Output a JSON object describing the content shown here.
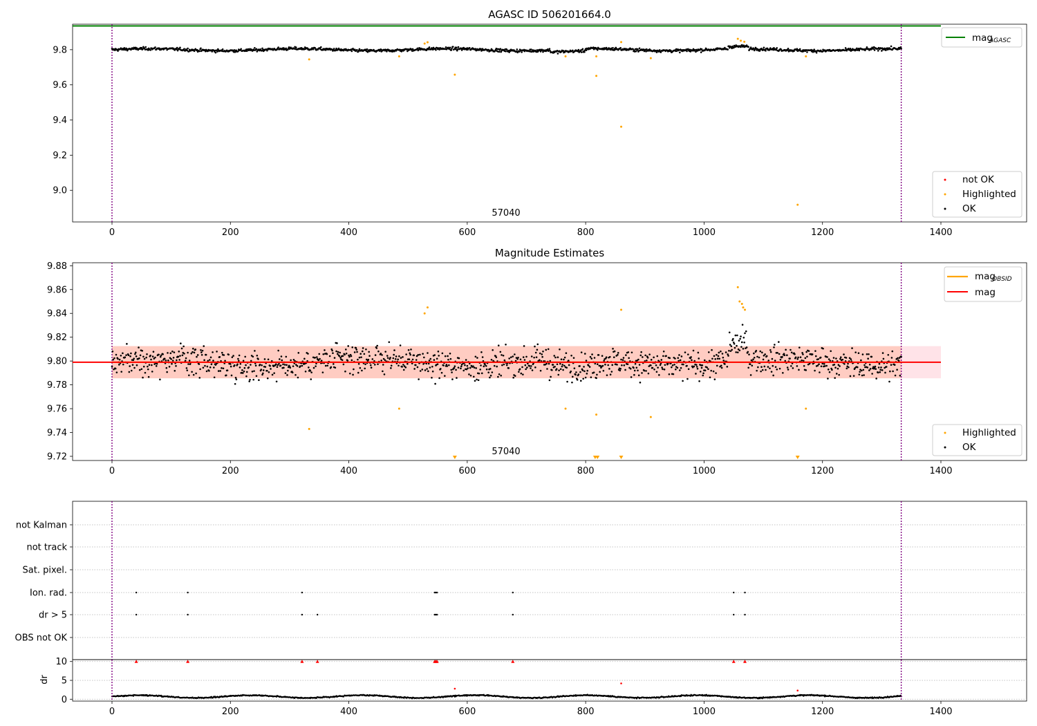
{
  "chart_data": [
    {
      "type": "scatter",
      "title": "AGASC ID 506201664.0",
      "xlim": [
        -66,
        1548
      ],
      "ylim": [
        8.82,
        9.945
      ],
      "xticks": [
        "0",
        "200",
        "400",
        "600",
        "800",
        "1000",
        "1200",
        "1400"
      ],
      "yticks": [
        "9.0",
        "9.2",
        "9.4",
        "9.6",
        "9.8"
      ],
      "obsid_label": "57040",
      "obsid_boundaries": [
        0,
        1333
      ],
      "mag_agasc": 9.935,
      "mag_agasc_legend_main": "mag",
      "mag_agasc_legend_sub": "AGASC",
      "series_legend": [
        "not OK",
        "Highlighted",
        "OK"
      ],
      "ok_baseline": 9.8,
      "highlighted": [
        {
          "x": 333,
          "y": 9.745
        },
        {
          "x": 485,
          "y": 9.762
        },
        {
          "x": 528,
          "y": 9.835
        },
        {
          "x": 533,
          "y": 9.842
        },
        {
          "x": 579,
          "y": 9.658
        },
        {
          "x": 766,
          "y": 9.762
        },
        {
          "x": 818,
          "y": 9.651
        },
        {
          "x": 818,
          "y": 9.762
        },
        {
          "x": 860,
          "y": 9.843
        },
        {
          "x": 860,
          "y": 9.362
        },
        {
          "x": 910,
          "y": 9.752
        },
        {
          "x": 1057,
          "y": 9.862
        },
        {
          "x": 1062,
          "y": 9.851
        },
        {
          "x": 1068,
          "y": 9.845
        },
        {
          "x": 1158,
          "y": 8.918
        },
        {
          "x": 1172,
          "y": 9.762
        }
      ]
    },
    {
      "type": "scatter",
      "title": "Magnitude Estimates",
      "xlim": [
        -66,
        1548
      ],
      "ylim": [
        9.7165,
        9.8825
      ],
      "xticks": [
        "0",
        "200",
        "400",
        "600",
        "800",
        "1000",
        "1200",
        "1400"
      ],
      "yticks": [
        "9.72",
        "9.74",
        "9.76",
        "9.78",
        "9.80",
        "9.82",
        "9.84",
        "9.86",
        "9.88"
      ],
      "obsid_label": "57040",
      "obsid_boundaries": [
        0,
        1333
      ],
      "mag": 9.799,
      "mag_band": [
        9.7855,
        9.8125
      ],
      "obs_band": [
        9.7855,
        9.8125
      ],
      "legend_lines": [
        {
          "main": "mag",
          "sub": "OBSID"
        },
        {
          "main": "mag",
          "sub": ""
        }
      ],
      "series_legend": [
        "Highlighted",
        "OK"
      ],
      "highlighted": [
        {
          "x": 333,
          "y": 9.743
        },
        {
          "x": 485,
          "y": 9.76
        },
        {
          "x": 528,
          "y": 9.84
        },
        {
          "x": 533,
          "y": 9.845
        },
        {
          "x": 766,
          "y": 9.76
        },
        {
          "x": 860,
          "y": 9.843
        },
        {
          "x": 910,
          "y": 9.753
        },
        {
          "x": 1057,
          "y": 9.862
        },
        {
          "x": 1060,
          "y": 9.85
        },
        {
          "x": 1064,
          "y": 9.848
        },
        {
          "x": 1066,
          "y": 9.845
        },
        {
          "x": 1069,
          "y": 9.843
        },
        {
          "x": 1172,
          "y": 9.76
        },
        {
          "x": 818,
          "y": 9.755
        }
      ],
      "off_scale_markers": [
        579,
        816,
        820,
        860,
        1158
      ]
    },
    {
      "type": "scatter",
      "title": "",
      "xlim": [
        -66,
        1548
      ],
      "xticks": [
        "0",
        "200",
        "400",
        "600",
        "800",
        "1000",
        "1200",
        "1400"
      ],
      "flag_rows": [
        "not Kalman",
        "not track",
        "Sat. pixel.",
        "Ion. rad.",
        "dr > 5",
        "OBS not OK"
      ],
      "obsid_boundaries": [
        0,
        1333
      ],
      "flags": {
        "Ion. rad.": [
          41,
          128,
          321,
          545,
          547,
          549,
          677,
          1050,
          1069
        ],
        "dr > 5": [
          41,
          128,
          321,
          347,
          545,
          547,
          549,
          677,
          1050,
          1069
        ]
      }
    },
    {
      "type": "scatter",
      "ylabel": "dr",
      "xlim": [
        -66,
        1548
      ],
      "ylim": [
        -0.5,
        10.5
      ],
      "yticks": [
        "0",
        "5",
        "10"
      ],
      "xticks": [
        "0",
        "200",
        "400",
        "600",
        "800",
        "1000",
        "1200",
        "1400"
      ],
      "obsid_boundaries": [
        0,
        1333
      ],
      "dr_high_markers": [
        41,
        128,
        321,
        347,
        545,
        547,
        549,
        677,
        1050,
        1069
      ],
      "dr_outliers": [
        {
          "x": 579,
          "y": 2.8
        },
        {
          "x": 860,
          "y": 4.2
        },
        {
          "x": 1158,
          "y": 2.3
        }
      ]
    }
  ],
  "colors": {
    "ok": "#000000",
    "highlighted": "#FFA500",
    "not_ok": "#FF0000",
    "agasc_line": "#008000",
    "mag_line": "#FF0000",
    "obs_line": "#FFA500",
    "band_mag": "#FFC0CB",
    "band_obs": "#FFA07A",
    "boundary": "#800080"
  }
}
